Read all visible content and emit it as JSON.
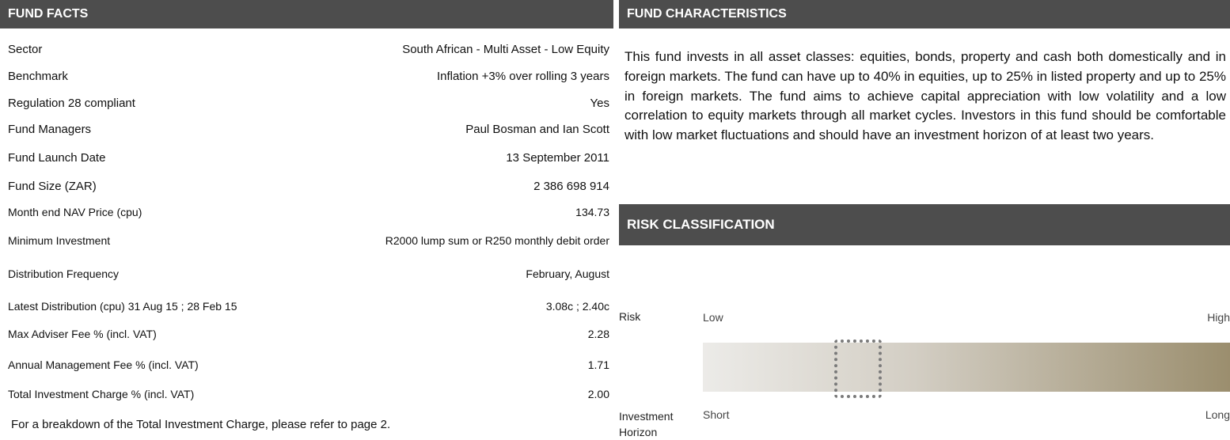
{
  "fund_facts": {
    "title": "FUND FACTS",
    "rows": [
      [
        "Sector",
        "South African - Multi Asset - Low Equity"
      ],
      [
        "Benchmark",
        "Inflation +3%  over rolling 3 years"
      ],
      [
        "Regulation 28 compliant",
        "Yes"
      ],
      [
        "Fund Managers",
        "Paul Bosman and Ian Scott"
      ],
      [
        "Fund Launch Date",
        "13 September 2011"
      ],
      [
        "Fund Size (ZAR)",
        "2 386 698 914"
      ],
      [
        "Month end NAV Price (cpu)",
        "134.73"
      ],
      [
        "Minimum Investment",
        "R2000 lump sum or  R250 monthly debit order"
      ],
      [
        "Distribution Frequency",
        "February, August"
      ],
      [
        "Latest Distribution (cpu)  31 Aug 15 ; 28 Feb 15",
        "3.08c ; 2.40c"
      ],
      [
        "Max Adviser Fee % (incl. VAT)",
        "2.28"
      ],
      [
        "Annual Management Fee % (incl. VAT)",
        "1.71"
      ],
      [
        "Total Investment Charge % (incl. VAT)",
        "2.00"
      ]
    ],
    "footnote": "For a breakdown of the Total Investment Charge, please refer to page 2."
  },
  "fund_characteristics": {
    "title": "FUND CHARACTERISTICS",
    "text": "This fund invests in all asset classes: equities, bonds, property and cash both domestically and in foreign markets. The fund can have up to 40% in equities, up to 25% in listed property and up to 25% in foreign markets. The fund aims to achieve capital appreciation with low volatility and a low correlation to equity markets through all market cycles. Investors in this fund should be comfortable with low market fluctuations and should have an investment horizon of at least two years."
  },
  "risk_classification": {
    "title": "RISK CLASSIFICATION",
    "risk_label": "Risk",
    "low": "Low",
    "high": "High",
    "horizon_label": "Investment Horizon",
    "short": "Short",
    "long": "Long"
  }
}
